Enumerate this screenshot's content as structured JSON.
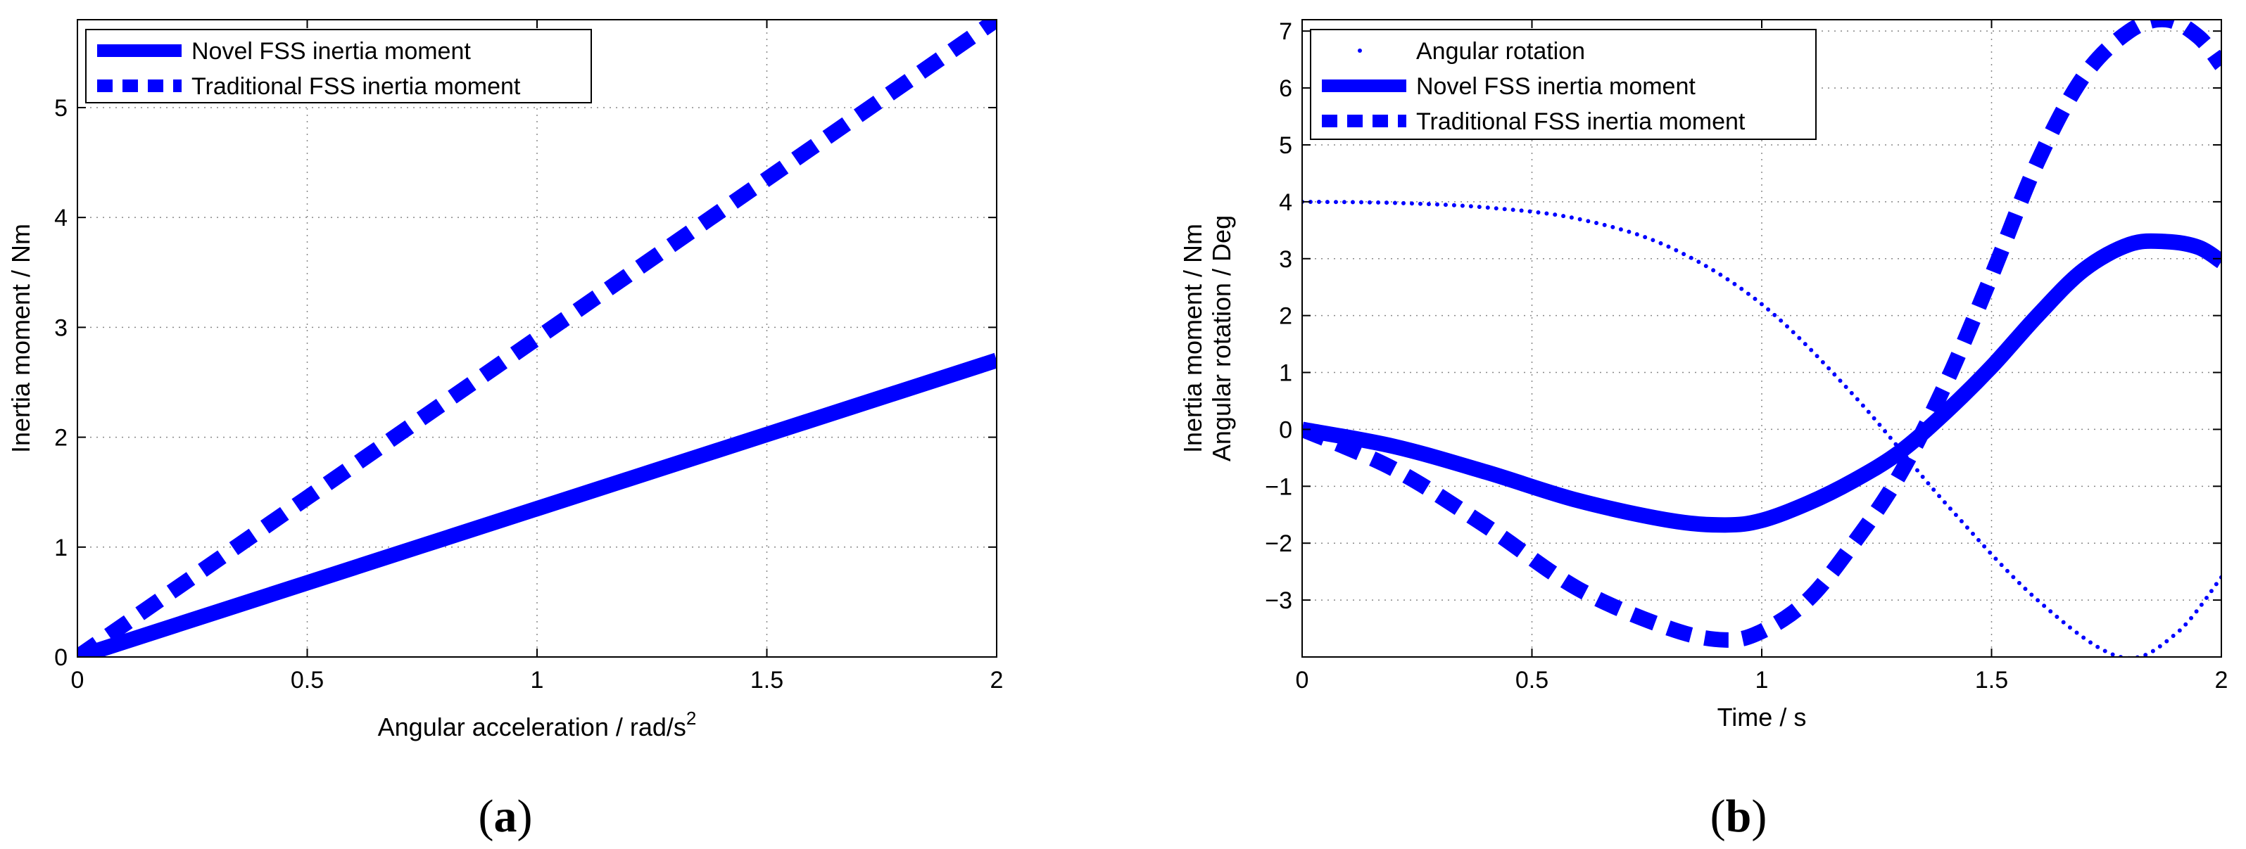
{
  "chart_data": [
    {
      "type": "line",
      "panel_label": "a",
      "title": "",
      "xlabel": "Angular acceleration / rad/s",
      "xlabel_superscript": "2",
      "ylabel": "Inertia moment / Nm",
      "xlim": [
        0,
        2
      ],
      "ylim": [
        0,
        5.8
      ],
      "xticks": [
        0,
        0.5,
        1,
        1.5,
        2
      ],
      "xtick_labels": [
        "0",
        "0.5",
        "1",
        "1.5",
        "2"
      ],
      "yticks": [
        0,
        1,
        2,
        3,
        4,
        5
      ],
      "ytick_labels": [
        "0",
        "1",
        "2",
        "3",
        "4",
        "5"
      ],
      "grid": true,
      "legend_position": "top-left",
      "series": [
        {
          "name": "Novel FSS inertia moment",
          "style": "solid",
          "color": "#0000ff",
          "x": [
            0,
            0.5,
            1,
            1.5,
            2
          ],
          "y": [
            0,
            0.675,
            1.35,
            2.025,
            2.7
          ]
        },
        {
          "name": "Traditional FSS inertia moment",
          "style": "dashed",
          "color": "#0000ff",
          "x": [
            0,
            0.5,
            1,
            1.5,
            2
          ],
          "y": [
            0,
            1.45,
            2.9,
            4.35,
            5.8
          ]
        }
      ]
    },
    {
      "type": "line",
      "panel_label": "b",
      "title": "",
      "xlabel": "Time / s",
      "ylabel": "Inertia moment / Nm",
      "ylabel2": "Angular rotation / Deg",
      "xlim": [
        0,
        2
      ],
      "ylim": [
        -4,
        7.2
      ],
      "xticks": [
        0,
        0.5,
        1,
        1.5,
        2
      ],
      "xtick_labels": [
        "0",
        "0.5",
        "1",
        "1.5",
        "2"
      ],
      "yticks": [
        -3,
        -2,
        -1,
        0,
        1,
        2,
        3,
        4,
        5,
        6,
        7
      ],
      "ytick_labels": [
        "−3",
        "−2",
        "−1",
        "0",
        "1",
        "2",
        "3",
        "4",
        "5",
        "6",
        "7"
      ],
      "grid": true,
      "legend_position": "top-left",
      "series": [
        {
          "name": "Angular rotation",
          "style": "dotted",
          "color": "#0000ff",
          "x": [
            0,
            0.2,
            0.4,
            0.6,
            0.8,
            1.0,
            1.2,
            1.4,
            1.6,
            1.78,
            1.9,
            2.0
          ],
          "y": [
            4,
            3.98,
            3.9,
            3.7,
            3.2,
            2.2,
            0.6,
            -1.3,
            -3.0,
            -4.0,
            -3.6,
            -2.6
          ]
        },
        {
          "name": "Novel FSS inertia moment",
          "style": "solid",
          "color": "#0000ff",
          "x": [
            0,
            0.2,
            0.4,
            0.6,
            0.8,
            0.92,
            1.0,
            1.1,
            1.2,
            1.3,
            1.4,
            1.5,
            1.6,
            1.7,
            1.8,
            1.88,
            1.95,
            2.0
          ],
          "y": [
            0,
            -0.3,
            -0.75,
            -1.25,
            -1.6,
            -1.68,
            -1.6,
            -1.3,
            -0.9,
            -0.4,
            0.3,
            1.1,
            2.0,
            2.8,
            3.25,
            3.3,
            3.2,
            2.95
          ]
        },
        {
          "name": "Traditional FSS inertia moment",
          "style": "dashed",
          "color": "#0000ff",
          "x": [
            0,
            0.2,
            0.4,
            0.6,
            0.8,
            0.92,
            1.0,
            1.1,
            1.2,
            1.3,
            1.4,
            1.5,
            1.6,
            1.7,
            1.8,
            1.88,
            1.95,
            2.0
          ],
          "y": [
            0,
            -0.7,
            -1.7,
            -2.8,
            -3.5,
            -3.7,
            -3.55,
            -3.0,
            -2.0,
            -0.8,
            0.8,
            2.7,
            4.7,
            6.2,
            7.0,
            7.2,
            6.9,
            6.4
          ]
        }
      ]
    }
  ]
}
